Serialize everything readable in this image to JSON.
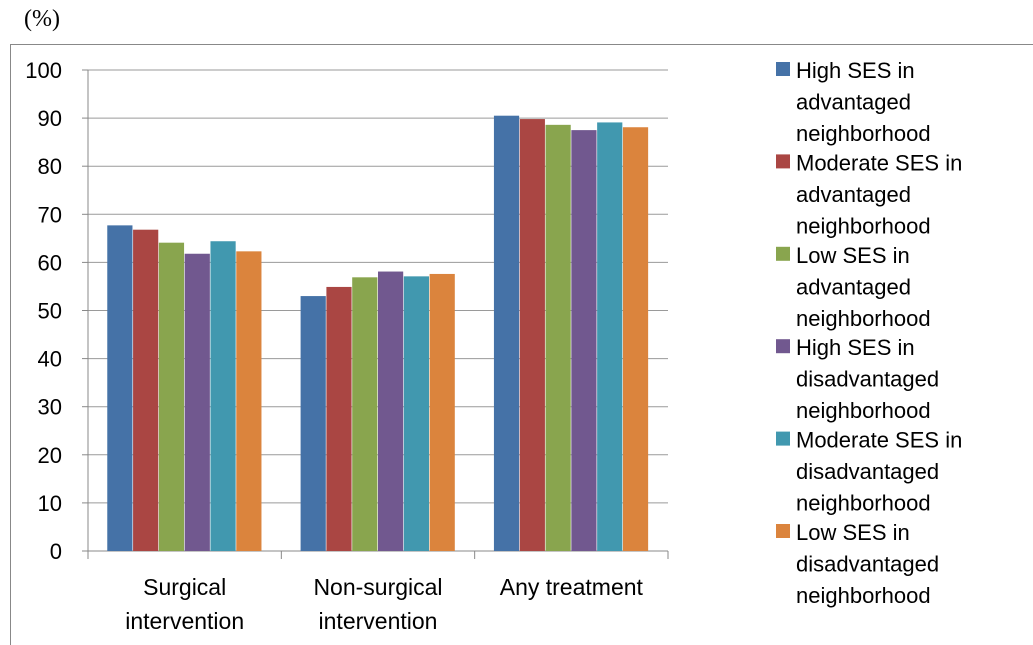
{
  "unit_label": "(%)",
  "chart_data": {
    "type": "bar",
    "title": "",
    "xlabel": "",
    "ylabel": "(%)",
    "ylim": [
      0,
      100
    ],
    "yticks": [
      0,
      10,
      20,
      30,
      40,
      50,
      60,
      70,
      80,
      90,
      100
    ],
    "grid": true,
    "legend_position": "right",
    "categories": [
      [
        "Surgical",
        "intervention"
      ],
      [
        "Non-surgical",
        "intervention"
      ],
      [
        "Any treatment"
      ]
    ],
    "series": [
      {
        "name": [
          "High SES in",
          "advantaged",
          "neighborhood"
        ],
        "color": "#4572A7",
        "values": [
          67.7,
          53.0,
          90.5
        ]
      },
      {
        "name": [
          "Moderate SES in",
          "advantaged",
          "neighborhood"
        ],
        "color": "#AA4643",
        "values": [
          66.8,
          54.9,
          89.8
        ]
      },
      {
        "name": [
          "Low SES in",
          "advantaged",
          "neighborhood"
        ],
        "color": "#89A54E",
        "values": [
          64.1,
          56.9,
          88.6
        ]
      },
      {
        "name": [
          "High SES in",
          "disadvantaged",
          "neighborhood"
        ],
        "color": "#71588F",
        "values": [
          61.8,
          58.1,
          87.5
        ]
      },
      {
        "name": [
          "Moderate SES in",
          "disadvantaged",
          "neighborhood"
        ],
        "color": "#4198AF",
        "values": [
          64.4,
          57.1,
          89.1
        ]
      },
      {
        "name": [
          "Low SES in",
          "disadvantaged",
          "neighborhood"
        ],
        "color": "#DB843D",
        "values": [
          62.3,
          57.6,
          88.1
        ]
      }
    ]
  }
}
